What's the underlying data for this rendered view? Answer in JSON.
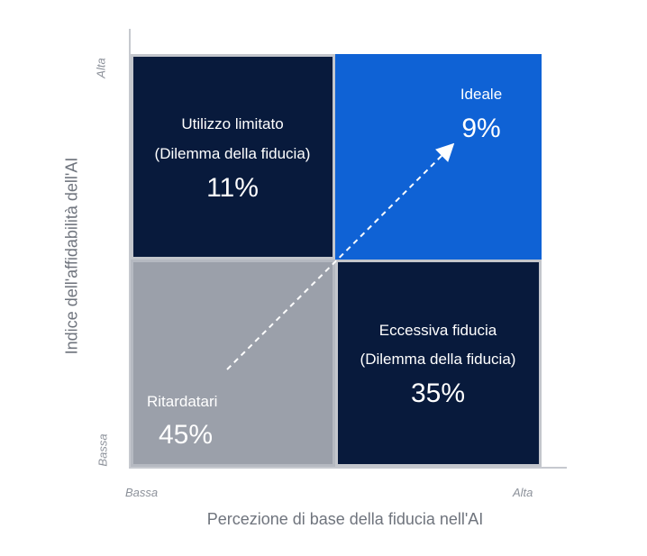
{
  "chart_data": {
    "type": "quadrant",
    "ylabel": "Indice dell'affidabilità dell'AI",
    "xlabel": "Percezione di base della fiducia nell'AI",
    "x_ticks": {
      "low": "Bassa",
      "high": "Alta"
    },
    "y_ticks": {
      "low": "Bassa",
      "high": "Alta"
    },
    "quadrants": [
      {
        "name": "Utilizzo limitato",
        "subtitle": "(Dilemma della fiducia)",
        "value": 11,
        "value_label": "11%",
        "x": "low",
        "y": "high",
        "color": "#081a3c"
      },
      {
        "name": "Ideale",
        "subtitle": "",
        "value": 9,
        "value_label": "9%",
        "x": "high",
        "y": "high",
        "color": "#0f62d5"
      },
      {
        "name": "Ritardatari",
        "subtitle": "",
        "value": 45,
        "value_label": "45%",
        "x": "low",
        "y": "low",
        "color": "#9ba0aa"
      },
      {
        "name": "Eccessiva fiducia",
        "subtitle": "(Dilemma della fiducia)",
        "value": 35,
        "value_label": "35%",
        "x": "high",
        "y": "low",
        "color": "#081a3c"
      }
    ],
    "arrow": {
      "from": "Ritardatari",
      "to": "Ideale",
      "style": "dashed"
    }
  }
}
